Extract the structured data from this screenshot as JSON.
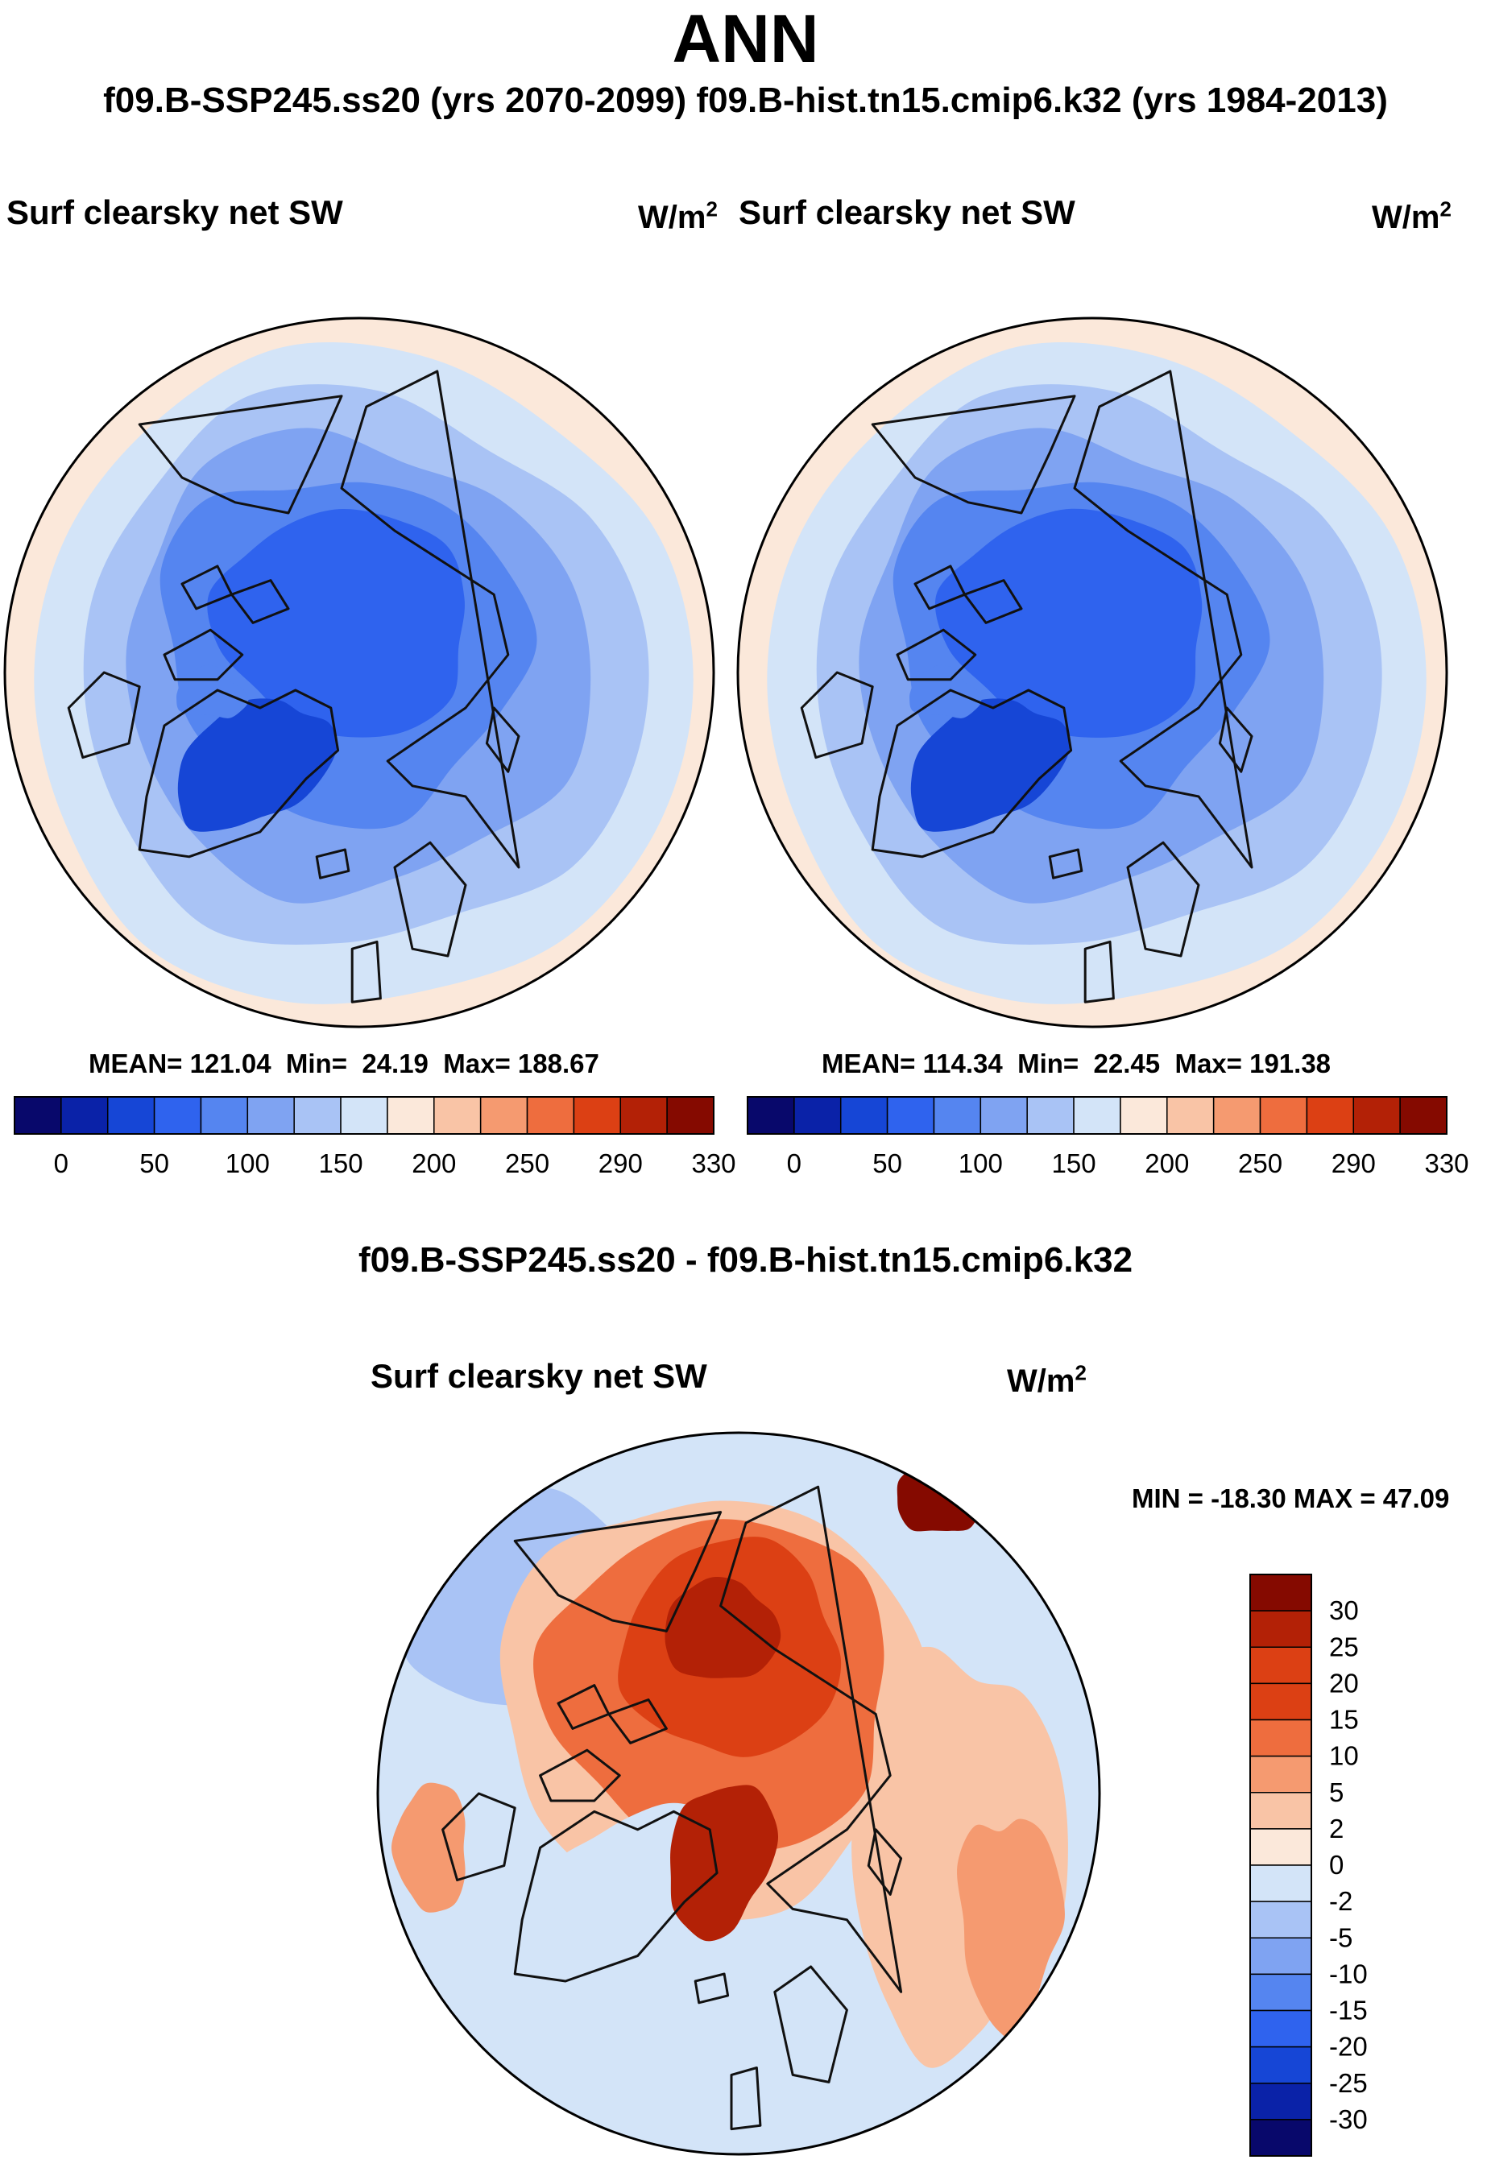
{
  "header": {
    "title": "ANN",
    "subtitle": "f09.B-SSP245.ss20 (yrs 2070-2099)  f09.B-hist.tn15.cmip6.k32 (yrs 1984-2013)",
    "diff_title": "f09.B-SSP245.ss20 - f09.B-hist.tn15.cmip6.k32"
  },
  "colors": {
    "abs_scale": [
      "#08086b",
      "#0a22a8",
      "#1646d6",
      "#2f63ee",
      "#5585f0",
      "#7fa3f2",
      "#a9c3f5",
      "#d3e4f8",
      "#fbe8da",
      "#f9c4a6",
      "#f59a70",
      "#ee6d3e",
      "#dc4014",
      "#b32106",
      "#850a00"
    ],
    "diff_scale": [
      "#08086b",
      "#0a22a8",
      "#1646d6",
      "#2f63ee",
      "#5585f0",
      "#7fa3f2",
      "#a9c3f5",
      "#d3e4f8",
      "#fbe8da",
      "#f9c4a6",
      "#f59a70",
      "#ee6d3e",
      "#dc4014",
      "#b32106",
      "#850a00"
    ],
    "coast": "#111111"
  },
  "chart_data": [
    {
      "type": "heatmap",
      "projection": "north-polar-stereographic",
      "title": "Surf clearsky net SW",
      "units": "W/m",
      "units_exp": "2",
      "case": "f09.B-SSP245.ss20 (yrs 2070-2099)",
      "stats": {
        "mean_label": "MEAN=",
        "mean": "121.04",
        "min_label": "Min=",
        "min": "24.19",
        "max_label": "Max=",
        "max": "188.67"
      },
      "colorbar": {
        "orientation": "horizontal",
        "tick_labels": [
          "0",
          "50",
          "100",
          "150",
          "200",
          "250",
          "290",
          "330"
        ],
        "num_bins": 15
      }
    },
    {
      "type": "heatmap",
      "projection": "north-polar-stereographic",
      "title": "Surf clearsky net SW",
      "units": "W/m",
      "units_exp": "2",
      "case": "f09.B-hist.tn15.cmip6.k32 (yrs 1984-2013)",
      "stats": {
        "mean_label": "MEAN=",
        "mean": "114.34",
        "min_label": "Min=",
        "min": "22.45",
        "max_label": "Max=",
        "max": "191.38"
      },
      "colorbar": {
        "orientation": "horizontal",
        "tick_labels": [
          "0",
          "50",
          "100",
          "150",
          "200",
          "250",
          "290",
          "330"
        ],
        "num_bins": 15
      }
    },
    {
      "type": "heatmap",
      "projection": "north-polar-stereographic",
      "title": "Surf clearsky net SW",
      "units": "W/m",
      "units_exp": "2",
      "case": "f09.B-SSP245.ss20 - f09.B-hist.tn15.cmip6.k32",
      "stats_text": "MIN = -18.30 MAX =  47.09",
      "min": -18.3,
      "max": 47.09,
      "colorbar": {
        "orientation": "vertical",
        "tick_labels": [
          "30",
          "25",
          "20",
          "15",
          "10",
          "5",
          "2",
          "0",
          "-2",
          "-5",
          "-10",
          "-15",
          "-20",
          "-25",
          "-30"
        ],
        "num_bins": 16
      }
    }
  ]
}
